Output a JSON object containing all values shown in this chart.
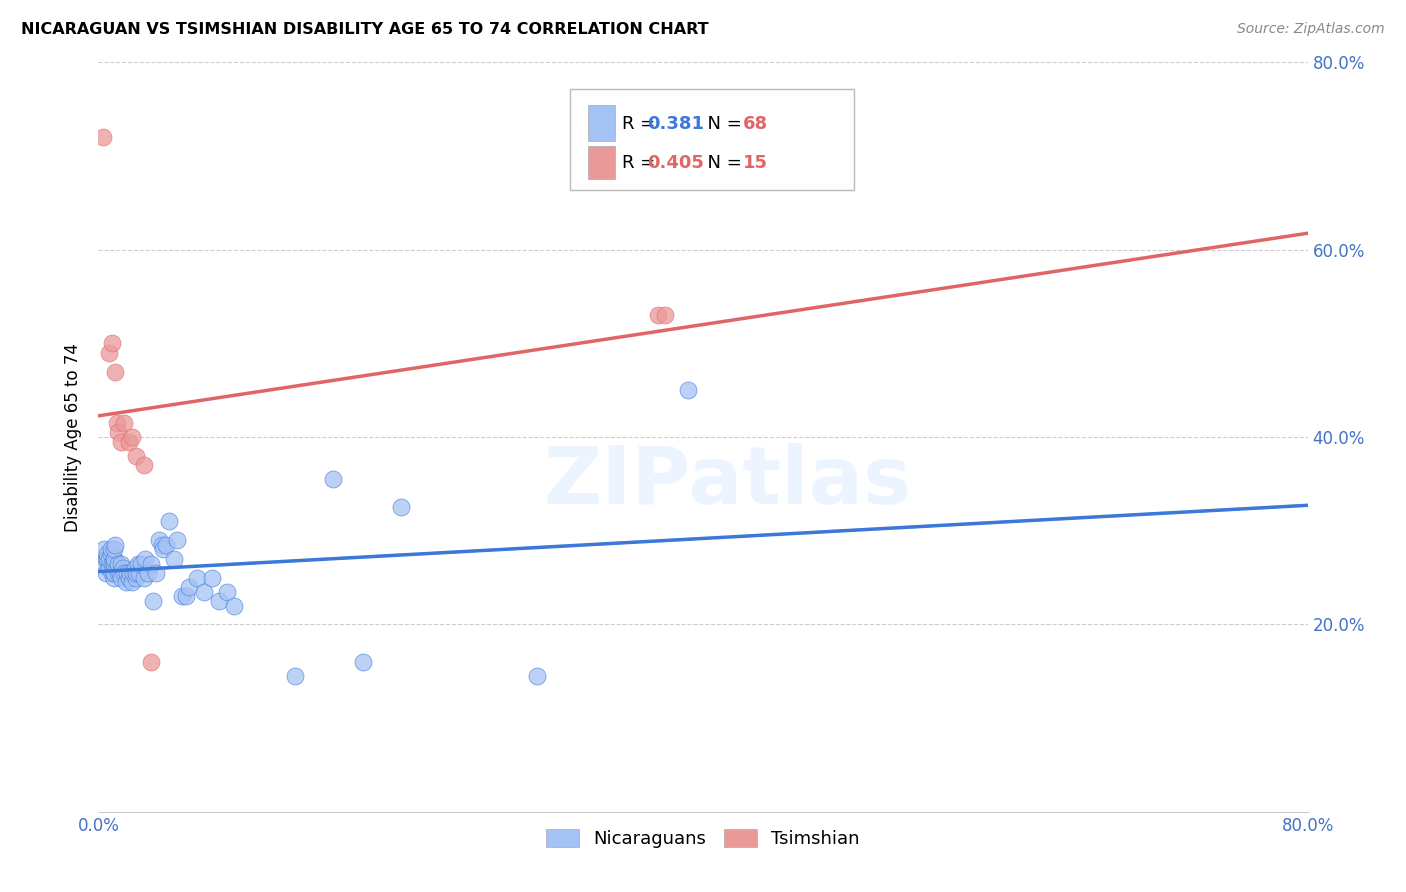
{
  "title": "NICARAGUAN VS TSIMSHIAN DISABILITY AGE 65 TO 74 CORRELATION CHART",
  "source": "Source: ZipAtlas.com",
  "ylabel": "Disability Age 65 to 74",
  "xlim": [
    0.0,
    0.8
  ],
  "ylim": [
    0.0,
    0.8
  ],
  "ytick_vals": [
    0.2,
    0.4,
    0.6,
    0.8
  ],
  "ytick_labels": [
    "20.0%",
    "40.0%",
    "60.0%",
    "80.0%"
  ],
  "nicaraguan_R": 0.381,
  "nicaraguan_N": 68,
  "tsimshian_R": 0.405,
  "tsimshian_N": 15,
  "nicaraguan_color": "#a4c2f4",
  "tsimshian_color": "#ea9999",
  "trend_nic_solid_color": "#3c78d8",
  "trend_nic_dash_color": "#9fc5e8",
  "trend_tsi_color": "#e06666",
  "watermark": "ZIPatlas",
  "background_color": "#ffffff",
  "tick_color": "#4472c4",
  "legend_box_color": "#cccccc",
  "nicaraguan_x": [
    0.003,
    0.004,
    0.005,
    0.005,
    0.006,
    0.006,
    0.007,
    0.007,
    0.008,
    0.008,
    0.009,
    0.009,
    0.01,
    0.01,
    0.01,
    0.01,
    0.01,
    0.01,
    0.01,
    0.011,
    0.012,
    0.013,
    0.013,
    0.014,
    0.015,
    0.015,
    0.016,
    0.017,
    0.018,
    0.019,
    0.02,
    0.021,
    0.022,
    0.023,
    0.024,
    0.025,
    0.025,
    0.026,
    0.027,
    0.028,
    0.03,
    0.031,
    0.033,
    0.035,
    0.036,
    0.038,
    0.04,
    0.042,
    0.043,
    0.045,
    0.047,
    0.05,
    0.052,
    0.055,
    0.058,
    0.06,
    0.065,
    0.07,
    0.075,
    0.08,
    0.085,
    0.09,
    0.13,
    0.155,
    0.175,
    0.2,
    0.29,
    0.39
  ],
  "nicaraguan_y": [
    0.265,
    0.28,
    0.27,
    0.255,
    0.27,
    0.275,
    0.26,
    0.27,
    0.275,
    0.28,
    0.255,
    0.265,
    0.25,
    0.255,
    0.265,
    0.27,
    0.265,
    0.27,
    0.28,
    0.285,
    0.26,
    0.255,
    0.265,
    0.255,
    0.25,
    0.265,
    0.26,
    0.255,
    0.245,
    0.255,
    0.25,
    0.255,
    0.245,
    0.255,
    0.26,
    0.25,
    0.255,
    0.265,
    0.255,
    0.265,
    0.25,
    0.27,
    0.255,
    0.265,
    0.225,
    0.255,
    0.29,
    0.285,
    0.28,
    0.285,
    0.31,
    0.27,
    0.29,
    0.23,
    0.23,
    0.24,
    0.25,
    0.235,
    0.25,
    0.225,
    0.235,
    0.22,
    0.145,
    0.355,
    0.16,
    0.325,
    0.145,
    0.45
  ],
  "tsimshian_x": [
    0.003,
    0.007,
    0.009,
    0.011,
    0.012,
    0.013,
    0.015,
    0.017,
    0.02,
    0.022,
    0.025,
    0.03,
    0.035,
    0.37,
    0.375
  ],
  "tsimshian_y": [
    0.72,
    0.49,
    0.5,
    0.47,
    0.415,
    0.405,
    0.395,
    0.415,
    0.395,
    0.4,
    0.38,
    0.37,
    0.16,
    0.53,
    0.53
  ]
}
